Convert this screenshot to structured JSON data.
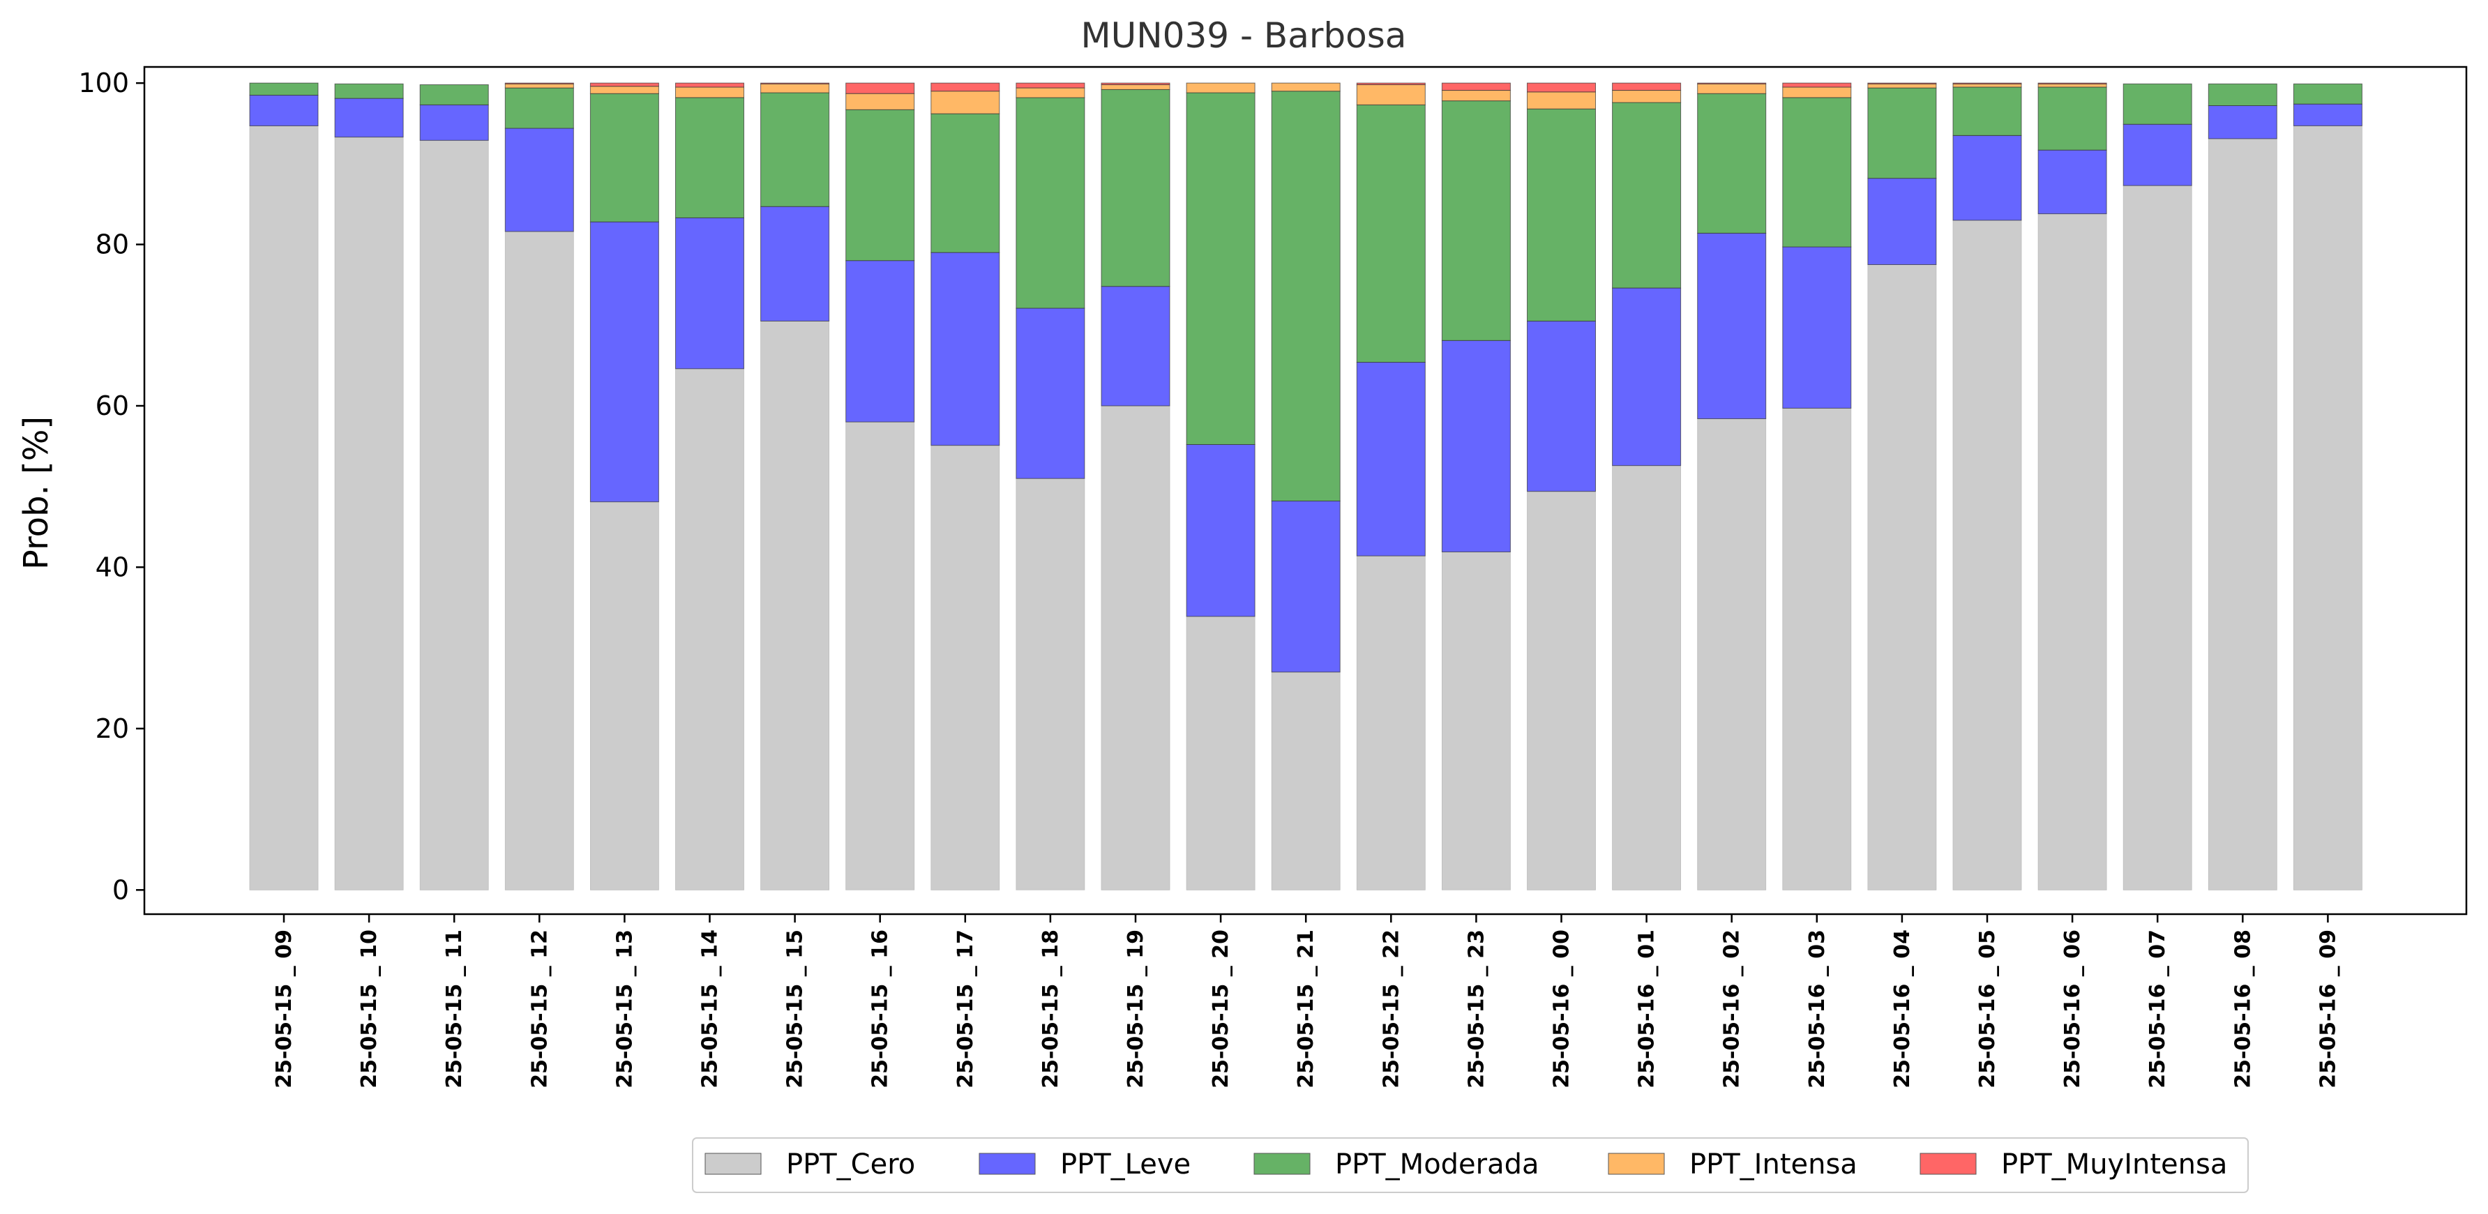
{
  "chart_data": {
    "type": "bar",
    "stacked": true,
    "title": "MUN039 - Barbosa",
    "xlabel": "",
    "ylabel": "Prob. [%]",
    "ylim": [
      -3,
      102
    ],
    "yticks": [
      0,
      20,
      40,
      60,
      80,
      100
    ],
    "grid": false,
    "legend_position": "bottom-center",
    "categories": [
      "25-05-15 _ 09",
      "25-05-15 _ 10",
      "25-05-15 _ 11",
      "25-05-15 _ 12",
      "25-05-15 _ 13",
      "25-05-15 _ 14",
      "25-05-15 _ 15",
      "25-05-15 _ 16",
      "25-05-15 _ 17",
      "25-05-15 _ 18",
      "25-05-15 _ 19",
      "25-05-15 _ 20",
      "25-05-15 _ 21",
      "25-05-15 _ 22",
      "25-05-15 _ 23",
      "25-05-16 _ 00",
      "25-05-16 _ 01",
      "25-05-16 _ 02",
      "25-05-16 _ 03",
      "25-05-16 _ 04",
      "25-05-16 _ 05",
      "25-05-16 _ 06",
      "25-05-16 _ 07",
      "25-05-16 _ 08",
      "25-05-16 _ 09"
    ],
    "series": [
      {
        "name": "PPT_Cero",
        "color": "#cccccc",
        "values": [
          94.7,
          93.3,
          92.9,
          81.6,
          48.1,
          64.6,
          70.5,
          58.0,
          55.1,
          51.0,
          60.0,
          33.9,
          27.0,
          41.4,
          41.9,
          49.4,
          52.6,
          58.4,
          59.7,
          77.5,
          83.0,
          83.8,
          87.3,
          93.1,
          94.7
        ]
      },
      {
        "name": "PPT_Leve",
        "color": "#6666ff",
        "values": [
          3.8,
          4.8,
          4.4,
          12.8,
          34.7,
          18.7,
          14.2,
          20.0,
          23.9,
          21.1,
          14.8,
          21.3,
          21.2,
          24.0,
          26.2,
          21.1,
          22.0,
          23.0,
          20.0,
          10.7,
          10.5,
          7.9,
          7.6,
          4.1,
          2.7
        ]
      },
      {
        "name": "PPT_Moderada",
        "color": "#66b266",
        "values": [
          1.5,
          1.8,
          2.5,
          5.0,
          15.9,
          14.9,
          14.1,
          18.7,
          17.2,
          26.1,
          24.4,
          43.6,
          50.8,
          31.9,
          29.7,
          26.3,
          23.0,
          17.3,
          18.5,
          11.2,
          6.0,
          7.8,
          5.0,
          2.7,
          2.5
        ]
      },
      {
        "name": "PPT_Intensa",
        "color": "#ffb866",
        "values": [
          0,
          0,
          0,
          0.5,
          0.9,
          1.3,
          1.1,
          2.0,
          2.8,
          1.2,
          0.6,
          1.2,
          1.0,
          2.5,
          1.3,
          2.1,
          1.5,
          1.2,
          1.3,
          0.5,
          0.4,
          0.4,
          0,
          0,
          0
        ]
      },
      {
        "name": "PPT_MuyIntensa",
        "color": "#ff6666",
        "values": [
          0,
          0,
          0,
          0.1,
          0.4,
          0.5,
          0.1,
          1.3,
          1.0,
          0.6,
          0.2,
          0,
          0,
          0.2,
          0.9,
          1.1,
          0.9,
          0.1,
          0.5,
          0.1,
          0.1,
          0.1,
          0,
          0,
          0
        ]
      }
    ]
  }
}
